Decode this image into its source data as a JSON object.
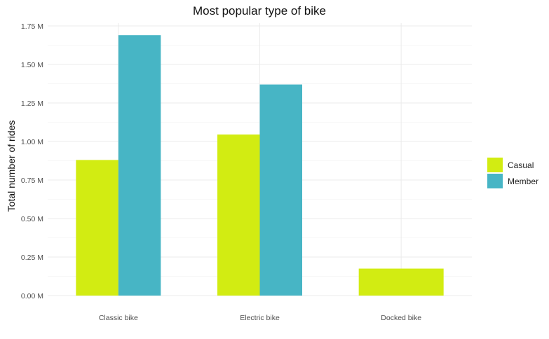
{
  "chart_data": {
    "type": "bar",
    "title": "Most popular type of bike",
    "xlabel": "",
    "ylabel": "Total number of rides",
    "categories": [
      "Classic bike",
      "Electric bike",
      "Docked bike"
    ],
    "series": [
      {
        "name": "Casual",
        "color": "#d2ec12",
        "values": [
          0.88,
          1.045,
          0.175
        ]
      },
      {
        "name": "Member",
        "color": "#47b5c5",
        "values": [
          1.69,
          1.37,
          null
        ]
      }
    ],
    "yticks": [
      0,
      0.25,
      0.5,
      0.75,
      1.0,
      1.25,
      1.5,
      1.75
    ],
    "ytick_labels": [
      "0.00 M",
      "0.25 M",
      "0.50 M",
      "0.75 M",
      "1.00 M",
      "1.25 M",
      "1.50 M",
      "1.75 M"
    ],
    "ylim": [
      0,
      1.75
    ],
    "grid": true,
    "legend_position": "right"
  }
}
